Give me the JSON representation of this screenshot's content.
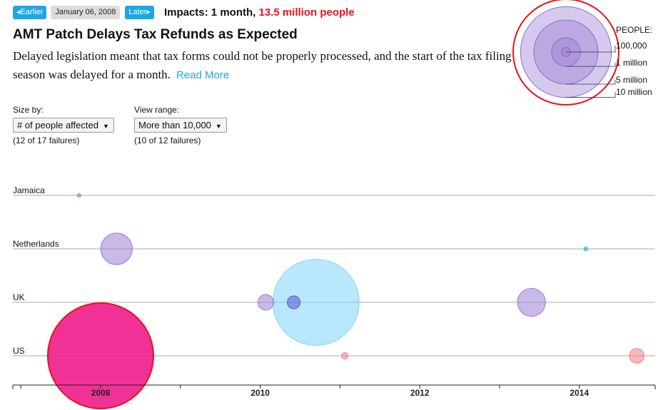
{
  "nav": {
    "earlier_label": "Earlier",
    "date": "January 06, 2008",
    "later_label": "Later",
    "impacts_prefix": "Impacts: 1 month, ",
    "impacts_people": "13.5 million people"
  },
  "story": {
    "title": "AMT Patch Delays Tax Refunds as Expected",
    "description": "Delayed legislation meant that tax forms could not be properly processed, and the start of the tax filing season was delayed for a month.",
    "read_more": "Read More"
  },
  "controls": {
    "size_by_label": "Size by:",
    "size_by_value": "# of people affected",
    "size_by_note": "(12 of 17 failures)",
    "range_label": "View range:",
    "range_value": "More than 10,000",
    "range_note": "(10 of 12 failures)"
  },
  "legend": {
    "title": "PEOPLE:",
    "items": [
      {
        "label": "100,000",
        "value": 100000
      },
      {
        "label": "1 million",
        "value": 1000000
      },
      {
        "label": "5 million",
        "value": 5000000
      },
      {
        "label": "10 million",
        "value": 10000000
      }
    ],
    "highlight_value": 13500000,
    "highlight_color": "#e8121b"
  },
  "chart_data": {
    "type": "scatter",
    "title": "AMT Patch Delays Tax Refunds as Expected",
    "xlabel": "",
    "ylabel": "",
    "x_range": [
      2006.9,
      2014.95
    ],
    "x_ticks": [
      2008,
      2010,
      2012,
      2014
    ],
    "categories": [
      "Jamaica",
      "Netherlands",
      "UK",
      "US"
    ],
    "size_by": "# of people affected",
    "series": [
      {
        "name": "Jamaica",
        "points": [
          {
            "x": 2007.73,
            "people": 10000,
            "color": "#9b7fd4"
          }
        ]
      },
      {
        "name": "Netherlands",
        "points": [
          {
            "x": 2008.2,
            "people": 1200000,
            "color": "#9b7fd4"
          },
          {
            "x": 2014.08,
            "people": 10000,
            "color": "#1ea7e8"
          }
        ]
      },
      {
        "name": "UK",
        "points": [
          {
            "x": 2010.07,
            "people": 300000,
            "color": "#9b7fd4"
          },
          {
            "x": 2010.42,
            "people": 200000,
            "color": "#5a55d0"
          },
          {
            "x": 2010.7,
            "people": 9000000,
            "color": "#7fd4f7"
          },
          {
            "x": 2013.4,
            "people": 950000,
            "color": "#9b7fd4"
          }
        ]
      },
      {
        "name": "US",
        "points": [
          {
            "x": 2008.0,
            "people": 13500000,
            "color": "#ee1c8b",
            "selected": true
          },
          {
            "x": 2011.06,
            "people": 50000,
            "color": "#f07e84"
          },
          {
            "x": 2014.72,
            "people": 260000,
            "color": "#f07e84"
          }
        ]
      }
    ]
  }
}
